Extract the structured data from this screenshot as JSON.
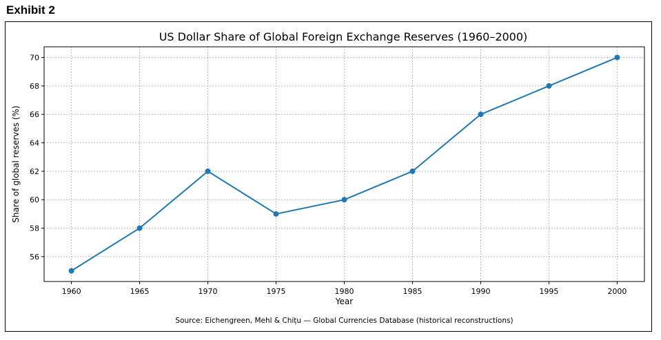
{
  "exhibit": {
    "label": "Exhibit 2"
  },
  "chart_data": {
    "type": "line",
    "title": "US Dollar Share of Global Foreign Exchange Reserves (1960–2000)",
    "xlabel": "Year",
    "ylabel": "Share of global reserves (%)",
    "x": [
      1960,
      1965,
      1970,
      1975,
      1980,
      1985,
      1990,
      1995,
      2000
    ],
    "series": [
      {
        "name": "US Dollar share",
        "values": [
          55,
          58,
          62,
          59,
          60,
          62,
          66,
          68,
          70
        ],
        "color": "#1f77b4"
      }
    ],
    "xlim": [
      1958,
      2002
    ],
    "ylim": [
      54.25,
      70.75
    ],
    "xticks": [
      "1960",
      "1965",
      "1970",
      "1975",
      "1980",
      "1985",
      "1990",
      "1995",
      "2000"
    ],
    "yticks": [
      "56",
      "58",
      "60",
      "62",
      "64",
      "66",
      "68",
      "70"
    ],
    "grid": true,
    "source": "Source: Eichengreen, Mehl & Chițu — Global Currencies Database (historical reconstructions)"
  }
}
